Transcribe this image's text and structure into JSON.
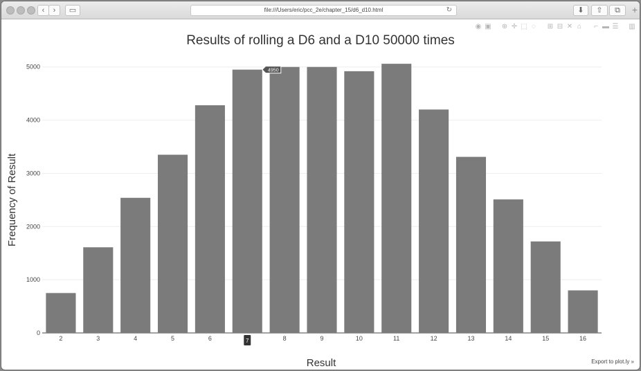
{
  "browser": {
    "url": "file:///Users/eric/pcc_2e/chapter_15/d6_d10.html"
  },
  "chart_data": {
    "type": "bar",
    "title": "Results of rolling a D6 and a D10 50000 times",
    "xlabel": "Result",
    "ylabel": "Frequency of Result",
    "categories": [
      "2",
      "3",
      "4",
      "5",
      "6",
      "7",
      "8",
      "9",
      "10",
      "11",
      "12",
      "13",
      "14",
      "15",
      "16"
    ],
    "values": [
      750,
      1610,
      2540,
      3350,
      4280,
      4950,
      5000,
      5000,
      4920,
      5060,
      4200,
      3310,
      2510,
      1720,
      800
    ],
    "ylim": [
      0,
      5400
    ],
    "yticks": [
      0,
      1000,
      2000,
      3000,
      4000,
      5000
    ],
    "grid": true,
    "bar_color": "#7b7b7b",
    "hover": {
      "category": "7",
      "value_label": "4950"
    }
  },
  "export_link": "Export to plot.ly »"
}
